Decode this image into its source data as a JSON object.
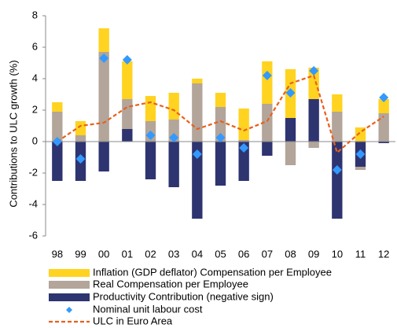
{
  "chart_data": {
    "type": "bar",
    "y_label": "Contributions to ULC growth (%)",
    "categories": [
      "98",
      "99",
      "00",
      "01",
      "02",
      "03",
      "04",
      "05",
      "06",
      "07",
      "08",
      "09",
      "10",
      "11",
      "12"
    ],
    "ylim": [
      -6,
      8
    ],
    "yticks": [
      -6,
      -4,
      -2,
      0,
      2,
      4,
      6,
      8
    ],
    "grid": false,
    "series": [
      {
        "name": "Productivity Contribution (negative sign)",
        "color": "#2e3470",
        "style": "bar",
        "values": [
          -2.5,
          -2.5,
          -1.9,
          0.8,
          -2.4,
          -2.9,
          -4.9,
          -2.8,
          -2.5,
          -0.9,
          1.5,
          2.7,
          -4.9,
          -1.6,
          -0.1
        ]
      },
      {
        "name": "Real Compensation per Employee",
        "color": "#b3a59a",
        "style": "bar",
        "values": [
          1.9,
          0.4,
          5.7,
          1.9,
          1.3,
          1.4,
          3.7,
          2.2,
          0.1,
          2.4,
          -1.5,
          -0.4,
          1.9,
          -0.2,
          1.8
        ]
      },
      {
        "name": "Inflation (GDP deflator) Compensation per Employee",
        "color": "#ffd320",
        "style": "bar",
        "values": [
          0.6,
          0.9,
          1.5,
          2.4,
          1.6,
          1.7,
          0.3,
          0.9,
          2.0,
          2.7,
          3.1,
          2.0,
          1.1,
          0.9,
          0.9
        ]
      },
      {
        "name": "Nominal unit labour cost",
        "color": "#3399ff",
        "style": "marker",
        "values": [
          0.0,
          -1.1,
          5.3,
          5.2,
          0.4,
          0.25,
          -0.8,
          0.25,
          -0.4,
          4.2,
          3.1,
          4.5,
          -1.8,
          -0.8,
          2.8
        ]
      },
      {
        "name": "ULC in Euro Area",
        "color": "#e8601c",
        "style": "line",
        "values": [
          0.0,
          1.0,
          1.2,
          2.2,
          2.5,
          2.0,
          0.8,
          1.3,
          0.7,
          1.3,
          3.7,
          4.2,
          -0.7,
          0.6,
          1.6
        ]
      }
    ],
    "legend_order": [
      2,
      1,
      0,
      3,
      4
    ]
  }
}
